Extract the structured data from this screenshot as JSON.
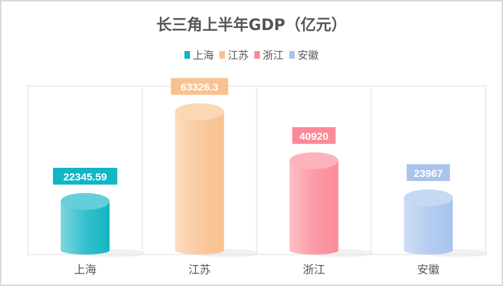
{
  "chart_data": {
    "type": "bar",
    "style": "3d-cylinder",
    "title": "长三角上半年GDP（亿元）",
    "categories": [
      "上海",
      "江苏",
      "浙江",
      "安徽"
    ],
    "values": [
      22345.59,
      63326.3,
      40920,
      23967
    ],
    "value_labels": [
      "22345.59",
      "63326.3",
      "40920",
      "23967"
    ],
    "legend": [
      "上海",
      "江苏",
      "浙江",
      "安徽"
    ],
    "legend_position": "top",
    "colors": [
      "#12b5c4",
      "#f9c18f",
      "#fb8a98",
      "#a8c4ec"
    ],
    "ylim": [
      0,
      75000
    ],
    "grid": "vertical-lines"
  }
}
